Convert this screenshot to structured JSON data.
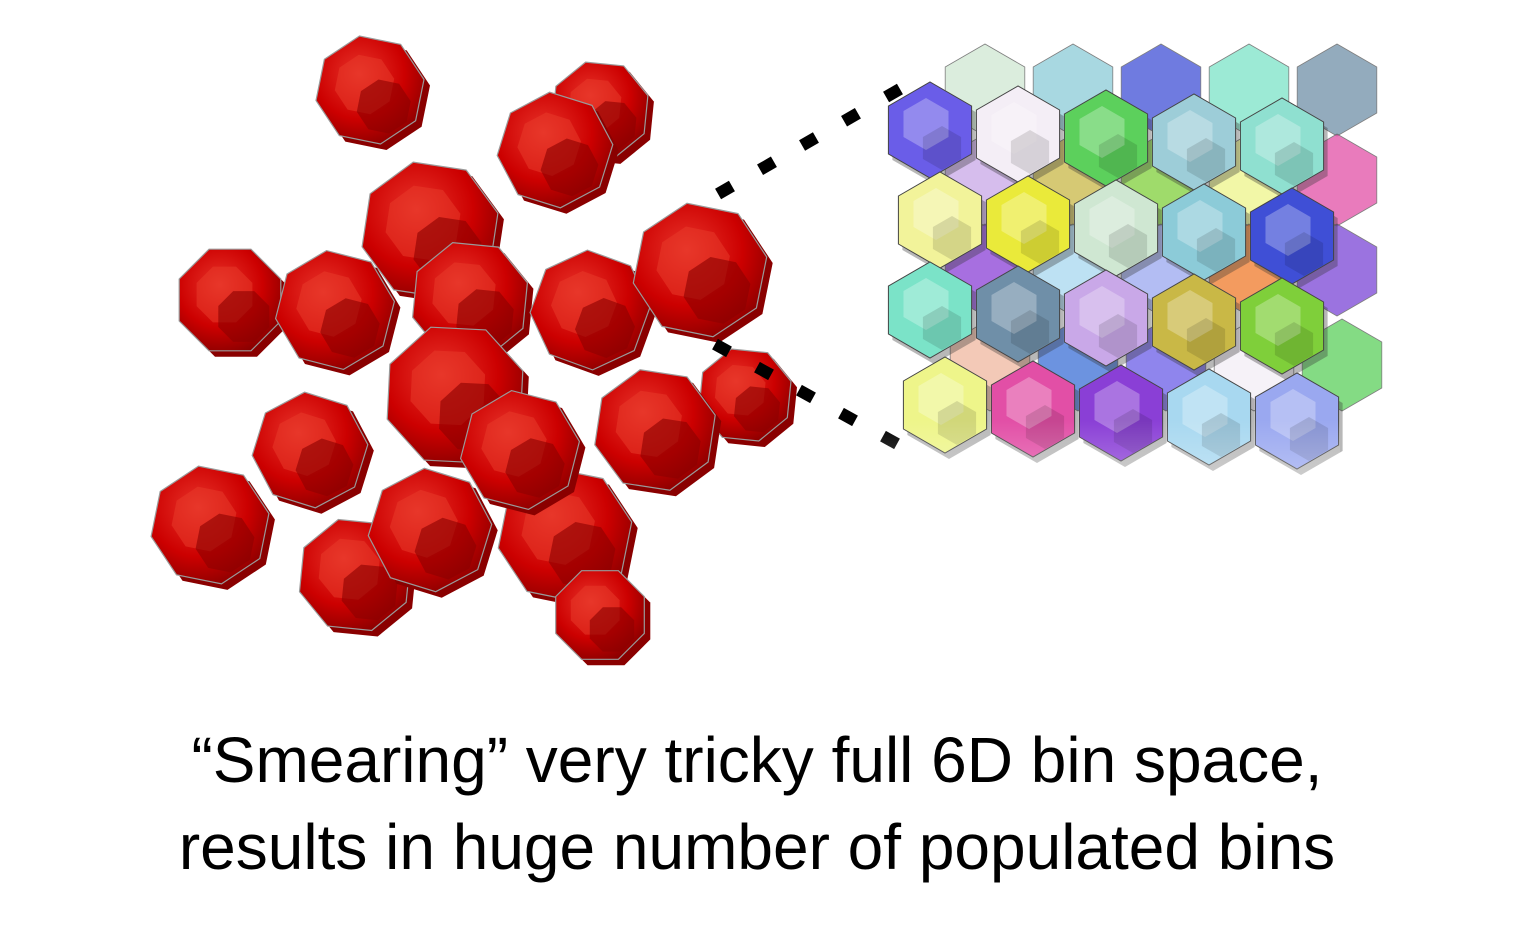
{
  "caption": {
    "line1": "“Smearing” very tricky full 6D bin space,",
    "line2": "results in huge number of populated bins"
  },
  "figure": {
    "left_cluster_color": "#d40000",
    "left_cluster_dark": "#8a0000",
    "left_cluster_light": "#e83a2a",
    "grid_colors": [
      "#6a5de8",
      "#f4eef6",
      "#5cd05c",
      "#9dcdd8",
      "#8fe0d0",
      "#f2f39a",
      "#eaea3a",
      "#cfe7d2",
      "#8ccbd8",
      "#3f4fd6",
      "#7be3c8",
      "#6f8fa8",
      "#c9a8e8",
      "#c9b846",
      "#7fcf3a",
      "#eef58a",
      "#e24fa6",
      "#8a3fd6",
      "#a8d8f0",
      "#9aa8f0",
      "#f07a2a",
      "#7a45d6",
      "#f0b8a0",
      "#3c6fd6"
    ]
  }
}
